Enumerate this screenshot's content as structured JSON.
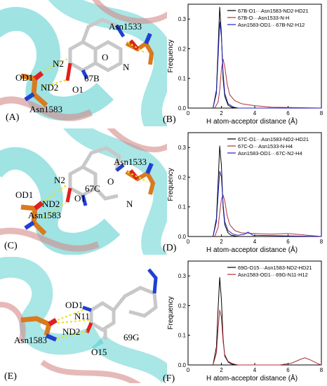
{
  "panels": [
    {
      "scene_letter": "(A)",
      "plot_letter": "(B)",
      "ligand_label": "67B",
      "atom_labels": [
        "N2",
        "OD1",
        "ND2",
        "O1",
        "O",
        "N"
      ],
      "residue_labels": [
        "Asn1533",
        "Asn1583"
      ]
    },
    {
      "scene_letter": "(C)",
      "plot_letter": "(D)",
      "ligand_label": "67C",
      "atom_labels": [
        "N2",
        "OD1",
        "ND2",
        "O1",
        "O",
        "N"
      ],
      "residue_labels": [
        "Asn1533",
        "Asn1583"
      ]
    },
    {
      "scene_letter": "(E)",
      "plot_letter": "(F)",
      "ligand_label": "69G",
      "atom_labels": [
        "OD1",
        "N11",
        "ND2",
        "O15"
      ],
      "residue_labels": [
        "Asn1583"
      ]
    }
  ],
  "colors": {
    "black_series": "#000000",
    "red_series": "#b0303a",
    "blue_series": "#2020c0",
    "ribbon_cyan": "#40c8c8",
    "ribbon_pink": "#d68a8a",
    "carbon_orange": "#d97a1e",
    "carbon_grey": "#c8c8c8",
    "oxygen_red": "#e02020",
    "nitrogen_blue": "#2040d0",
    "hbond_yellow": "#e8e020"
  },
  "chart_data": [
    {
      "type": "line",
      "xlabel": "H atom-acceptor distance (Å)",
      "ylabel": "Frequency",
      "xlim": [
        0,
        8
      ],
      "ylim": [
        0,
        0.35
      ],
      "xticks": [
        "0",
        "2",
        "4",
        "6",
        "8"
      ],
      "yticks": [
        "0.0",
        "0.1",
        "0.2",
        "0.3"
      ],
      "legend_position": "top-right",
      "series": [
        {
          "name": "67B-O1···Asn1583-ND2-HD21",
          "color": "#000000",
          "x": [
            1.5,
            1.7,
            1.8,
            1.9,
            2.0,
            2.1,
            2.2,
            2.4,
            2.6,
            3.0,
            8.0
          ],
          "y": [
            0.0,
            0.06,
            0.2,
            0.34,
            0.25,
            0.1,
            0.04,
            0.01,
            0.003,
            0.0,
            0.0
          ]
        },
        {
          "name": "67B-O···Asn1533-N-H",
          "color": "#b0303a",
          "x": [
            1.6,
            1.8,
            1.9,
            2.0,
            2.1,
            2.2,
            2.35,
            2.5,
            2.8,
            3.2,
            4.0,
            5.0,
            8.0
          ],
          "y": [
            0.0,
            0.02,
            0.06,
            0.13,
            0.165,
            0.14,
            0.08,
            0.045,
            0.025,
            0.015,
            0.008,
            0.003,
            0.0
          ]
        },
        {
          "name": "Asn1583-OD1···67B-N2-H12",
          "color": "#2020c0",
          "x": [
            1.5,
            1.7,
            1.8,
            1.9,
            2.0,
            2.1,
            2.2,
            2.4,
            2.7,
            3.0,
            8.0
          ],
          "y": [
            0.0,
            0.05,
            0.17,
            0.29,
            0.24,
            0.12,
            0.05,
            0.015,
            0.004,
            0.0,
            0.0
          ]
        }
      ]
    },
    {
      "type": "line",
      "xlabel": "H atom-acceptor distance (Å)",
      "ylabel": "Frequency",
      "xlim": [
        0,
        8
      ],
      "ylim": [
        0,
        0.35
      ],
      "xticks": [
        "0",
        "2",
        "4",
        "6",
        "8"
      ],
      "yticks": [
        "0.0",
        "0.1",
        "0.2",
        "0.3"
      ],
      "legend_position": "top-right",
      "series": [
        {
          "name": "67C-O1···Asn1583-ND2-HD21",
          "color": "#000000",
          "x": [
            1.5,
            1.7,
            1.8,
            1.9,
            2.0,
            2.1,
            2.2,
            2.4,
            2.6,
            3.0,
            8.0
          ],
          "y": [
            0.0,
            0.06,
            0.18,
            0.305,
            0.24,
            0.1,
            0.04,
            0.012,
            0.004,
            0.0,
            0.0
          ]
        },
        {
          "name": "67C-O···Asn1533-N-H4",
          "color": "#b0303a",
          "x": [
            1.6,
            1.8,
            1.9,
            2.0,
            2.1,
            2.2,
            2.35,
            2.5,
            2.8,
            3.2,
            4.0,
            5.0,
            6.0,
            8.0
          ],
          "y": [
            0.0,
            0.03,
            0.08,
            0.125,
            0.14,
            0.12,
            0.07,
            0.04,
            0.02,
            0.012,
            0.01,
            0.008,
            0.01,
            0.0
          ]
        },
        {
          "name": "Asn1583-OD1···67C-N2-H4",
          "color": "#2020c0",
          "x": [
            1.5,
            1.7,
            1.8,
            1.9,
            2.0,
            2.1,
            2.2,
            2.4,
            2.7,
            3.0,
            3.4,
            3.6,
            3.9,
            8.0
          ],
          "y": [
            0.0,
            0.05,
            0.14,
            0.22,
            0.2,
            0.11,
            0.05,
            0.02,
            0.008,
            0.004,
            0.008,
            0.015,
            0.004,
            0.0
          ]
        }
      ]
    },
    {
      "type": "line",
      "xlabel": "H atom-acceptor distance (Å)",
      "ylabel": "Frequency",
      "xlim": [
        0,
        8
      ],
      "ylim": [
        0,
        0.35
      ],
      "xticks": [
        "0",
        "2",
        "4",
        "6",
        "8"
      ],
      "yticks": [
        "0.0",
        "0.1",
        "0.2",
        "0.3"
      ],
      "legend_position": "top-right",
      "series": [
        {
          "name": "69G-O15···Asn1583-ND2-HD21",
          "color": "#000000",
          "x": [
            1.5,
            1.7,
            1.8,
            1.9,
            2.0,
            2.1,
            2.2,
            2.4,
            2.6,
            3.0,
            8.0
          ],
          "y": [
            0.0,
            0.06,
            0.19,
            0.295,
            0.22,
            0.09,
            0.03,
            0.01,
            0.003,
            0.0,
            0.0
          ]
        },
        {
          "name": "Asn1583-OD1···69G-N11-H12",
          "color": "#b0303a",
          "x": [
            1.5,
            1.7,
            1.8,
            1.9,
            2.0,
            2.1,
            2.2,
            2.4,
            2.7,
            3.0,
            5.5,
            6.2,
            6.8,
            7.0,
            7.3,
            7.8,
            8.0
          ],
          "y": [
            0.0,
            0.04,
            0.12,
            0.185,
            0.16,
            0.08,
            0.035,
            0.012,
            0.004,
            0.0,
            0.0,
            0.006,
            0.02,
            0.024,
            0.018,
            0.004,
            0.0
          ]
        }
      ]
    }
  ]
}
